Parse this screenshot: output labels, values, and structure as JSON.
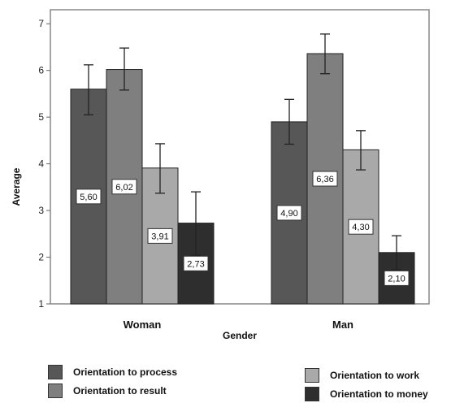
{
  "chart_data": {
    "type": "bar",
    "title": "",
    "xlabel": "Gender",
    "ylabel": "Average",
    "ylim": [
      1,
      7.3
    ],
    "yticks": [
      1,
      2,
      3,
      4,
      5,
      6,
      7
    ],
    "grid": false,
    "categories": [
      "Woman",
      "Man"
    ],
    "series": [
      {
        "name": "Orientation to process",
        "color": "#575757",
        "values": [
          5.6,
          4.9
        ],
        "labels": [
          "5,60",
          "4,90"
        ],
        "error_low": [
          5.05,
          4.42
        ],
        "error_high": [
          6.12,
          5.38
        ]
      },
      {
        "name": "Orientation to result",
        "color": "#7f7f7f",
        "values": [
          6.02,
          6.36
        ],
        "labels": [
          "6,02",
          "6,36"
        ],
        "error_low": [
          5.58,
          5.93
        ],
        "error_high": [
          6.48,
          6.78
        ]
      },
      {
        "name": "Orientation to work",
        "color": "#a9a9a9",
        "values": [
          3.91,
          4.3
        ],
        "labels": [
          "3,91",
          "4,30"
        ],
        "error_low": [
          3.37,
          3.87
        ],
        "error_high": [
          4.43,
          4.71
        ]
      },
      {
        "name": "Orientation to money",
        "color": "#2e2e2e",
        "values": [
          2.73,
          2.1
        ],
        "labels": [
          "2,73",
          "2,10"
        ],
        "error_low": [
          2.04,
          1.74
        ],
        "error_high": [
          3.4,
          2.46
        ]
      }
    ],
    "legend": "bottom"
  }
}
